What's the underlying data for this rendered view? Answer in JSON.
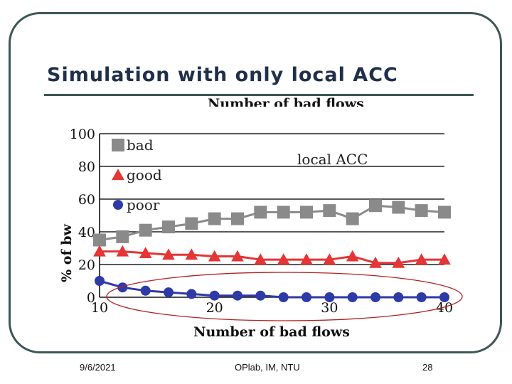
{
  "slide": {
    "title": "Simulation with only local ACC",
    "footer": {
      "date": "9/6/2021",
      "center": "OPlab, IM, NTU",
      "page": "28"
    }
  },
  "colors": {
    "bad": "#8a8a8a",
    "good": "#e53535",
    "poor": "#2e3aa8",
    "frame": "#3d5656",
    "ellipse": "#b22222"
  },
  "chart_data": {
    "type": "line",
    "top_caption": "Number of bad flows",
    "xlabel": "Number of bad flows",
    "ylabel": "% of bw",
    "xlim": [
      10,
      40
    ],
    "ylim": [
      0,
      100
    ],
    "xticks": [
      10,
      20,
      30,
      40
    ],
    "yticks": [
      0,
      20,
      40,
      60,
      80,
      100
    ],
    "grid": "horizontal",
    "annotation": "local ACC",
    "legend_position": "top-left",
    "x": [
      10,
      12,
      14,
      16,
      18,
      20,
      22,
      24,
      26,
      28,
      30,
      32,
      34,
      36,
      38,
      40
    ],
    "series": [
      {
        "name": "bad",
        "marker": "square",
        "color": "#8a8a8a",
        "values": [
          35,
          37,
          41,
          43,
          45,
          48,
          48,
          52,
          52,
          52,
          53,
          48,
          56,
          55,
          53,
          52
        ]
      },
      {
        "name": "good",
        "marker": "triangle",
        "color": "#e53535",
        "values": [
          28,
          28,
          27,
          26,
          26,
          25,
          25,
          23,
          23,
          23,
          23,
          25,
          21,
          21,
          23,
          23
        ]
      },
      {
        "name": "poor",
        "marker": "circle",
        "color": "#2e3aa8",
        "values": [
          10,
          6,
          4,
          3,
          2,
          1,
          1,
          1,
          0,
          0,
          0,
          0,
          0,
          0,
          0,
          0
        ]
      }
    ]
  }
}
